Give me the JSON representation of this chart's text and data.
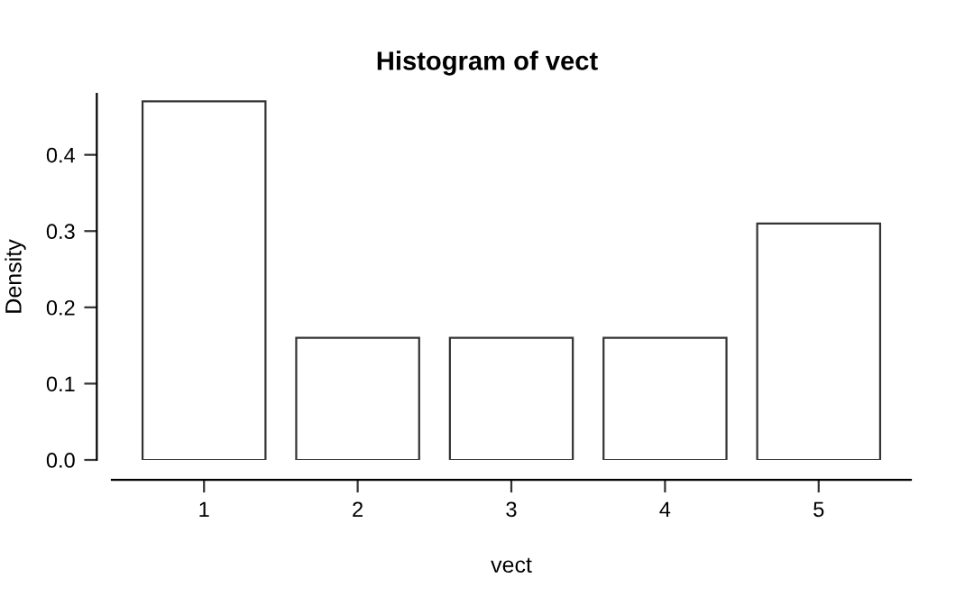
{
  "chart_data": {
    "type": "bar",
    "title": "Histogram of vect",
    "xlabel": "vect",
    "ylabel": "Density",
    "x": [
      1,
      2,
      3,
      4,
      5
    ],
    "values": [
      0.47,
      0.16,
      0.16,
      0.16,
      0.31
    ],
    "color": "#ffffff",
    "xlim": [
      0.4,
      5.6
    ],
    "xticks": [
      1,
      2,
      3,
      4,
      5
    ],
    "ylim": [
      0,
      0.48
    ],
    "yticks": [
      {
        "value": 0,
        "label": "0.0"
      },
      0.1,
      0.2,
      0.3,
      0.4
    ],
    "grid": false,
    "legend": false
  }
}
